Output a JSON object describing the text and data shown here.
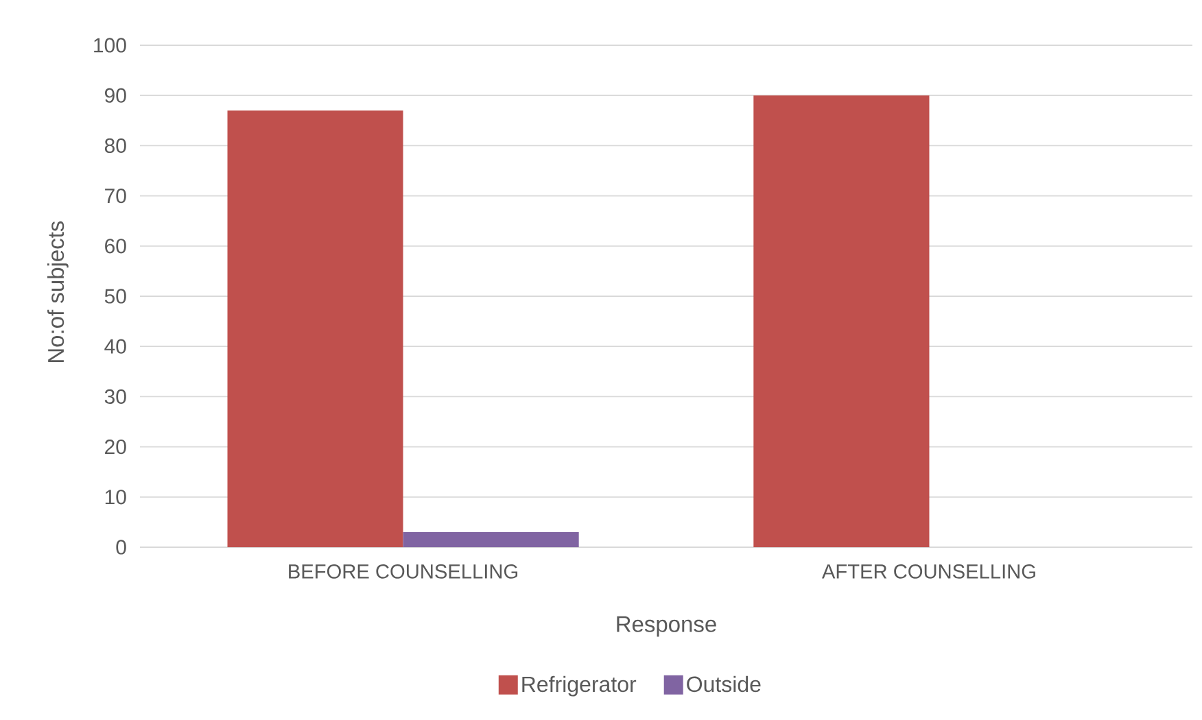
{
  "chart_data": {
    "type": "bar",
    "xlabel": "Response",
    "ylabel": "No:of subjects",
    "categories": [
      "BEFORE COUNSELLING",
      "AFTER COUNSELLING"
    ],
    "series": [
      {
        "name": "Refrigerator",
        "color": "#c0504d",
        "values": [
          87,
          90
        ]
      },
      {
        "name": "Outside",
        "color": "#8064a2",
        "values": [
          3,
          0
        ]
      }
    ],
    "ylim": [
      0,
      100
    ],
    "yticks": [
      0,
      10,
      20,
      30,
      40,
      50,
      60,
      70,
      80,
      90,
      100
    ],
    "grid": "y",
    "legend": "bottom"
  }
}
